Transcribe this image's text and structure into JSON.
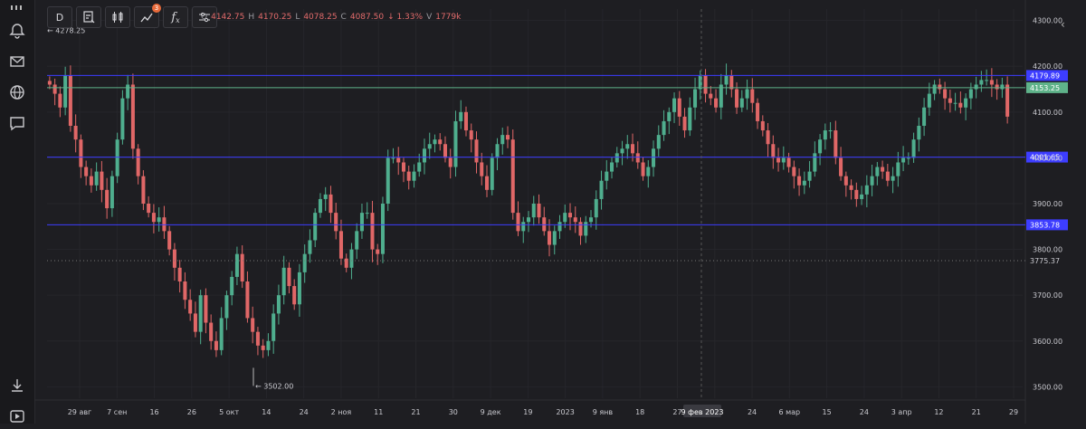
{
  "toolbar": {
    "interval_label": "D",
    "indicator_badge": "3",
    "fx_label": "f",
    "fx_sub": "x"
  },
  "ohlc": {
    "o_label": "O",
    "o_value": "4142.75",
    "h_label": "H",
    "h_value": "4170.25",
    "l_label": "L",
    "l_value": "4078.25",
    "c_label": "C",
    "c_value": "4087.50",
    "change": "↓ 1.33%",
    "v_label": "V",
    "v_value": "1779k"
  },
  "chart_data": {
    "type": "candlestick",
    "price_axis": {
      "ticks": [
        "4300.00",
        "4200.00",
        "4100.00",
        "4000.00",
        "3900.00",
        "3800.00",
        "3700.00",
        "3600.00",
        "3500.00"
      ],
      "tick_values": [
        4300,
        4200,
        4100,
        4000,
        3900,
        3800,
        3700,
        3600,
        3500
      ],
      "range": [
        3475,
        4325
      ]
    },
    "time_axis": {
      "labels": [
        "29 авг",
        "7 сен",
        "16",
        "26",
        "5 окт",
        "14",
        "24",
        "2 ноя",
        "11",
        "21",
        "30",
        "9 дек",
        "19",
        "2023",
        "9 янв",
        "18",
        "27",
        "15",
        "24",
        "6 мар",
        "15",
        "24",
        "3 апр",
        "12",
        "21",
        "29"
      ],
      "crosshair_label": "9 фев 2023"
    },
    "horizontal_levels": [
      {
        "label": "4179.89",
        "value": 4179.89,
        "color": "#3d3dff"
      },
      {
        "label": "4001.65",
        "value": 4001.65,
        "color": "#3d3dff"
      },
      {
        "label": "3853.78",
        "value": 3853.78,
        "color": "#3d3dff"
      }
    ],
    "current_price": {
      "label": "4153.25",
      "value": 4153.25,
      "color": "#5fb38a"
    },
    "dotted_level": {
      "label": "3775.37",
      "value": 3775.37
    },
    "max_marker": {
      "label": "← 4278.25",
      "value": 4278.25
    },
    "min_marker": {
      "label": "← 3502.00",
      "value": 3502.0
    },
    "close_series": [
      4160,
      4140,
      4110,
      4180,
      4070,
      4040,
      3980,
      3960,
      3940,
      3970,
      3930,
      3890,
      3960,
      4040,
      4130,
      4160,
      4020,
      3960,
      3900,
      3880,
      3860,
      3870,
      3840,
      3800,
      3760,
      3730,
      3690,
      3660,
      3620,
      3700,
      3640,
      3600,
      3580,
      3650,
      3700,
      3740,
      3790,
      3730,
      3650,
      3620,
      3590,
      3580,
      3600,
      3660,
      3700,
      3760,
      3720,
      3680,
      3750,
      3790,
      3820,
      3880,
      3910,
      3920,
      3880,
      3840,
      3780,
      3760,
      3800,
      3840,
      3880,
      3880,
      3800,
      3790,
      3900,
      4000,
      4000,
      3990,
      3970,
      3950,
      3970,
      3990,
      4020,
      4030,
      4040,
      4030,
      4000,
      3980,
      4080,
      4100,
      4060,
      4040,
      3990,
      3960,
      3930,
      4000,
      4030,
      4050,
      4040,
      3880,
      3840,
      3860,
      3870,
      3900,
      3870,
      3840,
      3810,
      3840,
      3860,
      3880,
      3870,
      3860,
      3830,
      3860,
      3870,
      3910,
      3950,
      3970,
      3990,
      4010,
      4020,
      4030,
      4010,
      3990,
      3960,
      3980,
      4020,
      4050,
      4080,
      4100,
      4130,
      4090,
      4060,
      4110,
      4150,
      4180,
      4140,
      4130,
      4110,
      4160,
      4180,
      4150,
      4110,
      4130,
      4150,
      4120,
      4080,
      4060,
      4030,
      4000,
      3990,
      4000,
      3980,
      3960,
      3940,
      3950,
      3970,
      4010,
      4040,
      4060,
      4060,
      4000,
      3960,
      3940,
      3930,
      3910,
      3920,
      3940,
      3960,
      3980,
      3970,
      3950,
      3960,
      3990,
      4000,
      4000,
      4040,
      4070,
      4110,
      4140,
      4160,
      4150,
      4130,
      4120,
      4120,
      4110,
      4130,
      4150,
      4160,
      4170,
      4170,
      4160,
      4150,
      4160,
      4090
    ]
  }
}
